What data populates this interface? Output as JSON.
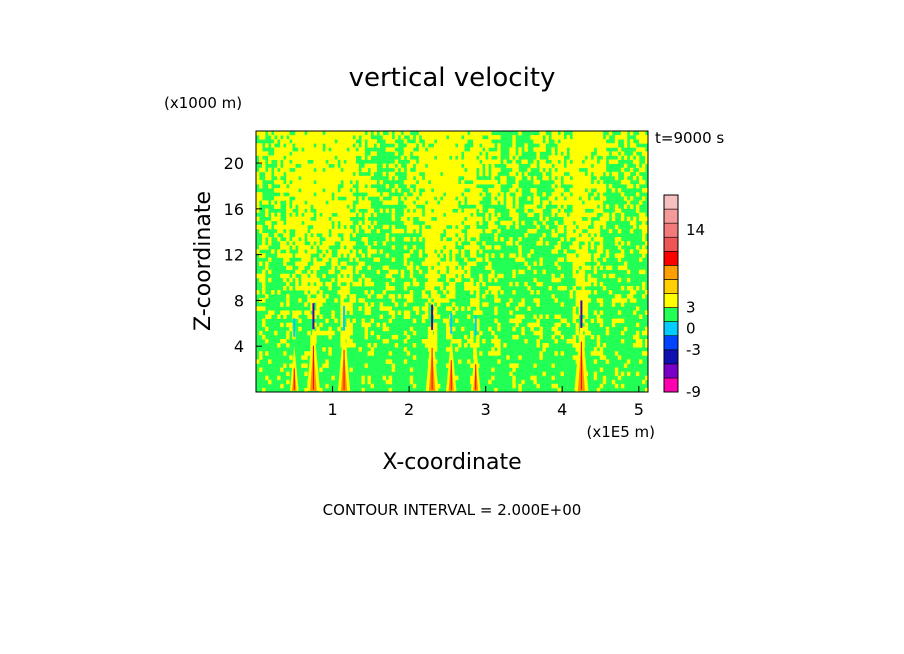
{
  "chart_data": {
    "type": "heatmap",
    "title": "vertical velocity",
    "time_label": "t=9000 s",
    "xlabel": "X-coordinate",
    "ylabel": "Z-coordinate",
    "x_unit": "(x1E5 m)",
    "y_unit": "(x1000 m)",
    "xlim": [
      0,
      5.12
    ],
    "ylim": [
      0,
      22.8
    ],
    "x_ticks": [
      1,
      2,
      3,
      4,
      5
    ],
    "y_ticks": [
      4,
      8,
      12,
      16,
      20
    ],
    "footer": "CONTOUR INTERVAL = 2.000E+00",
    "colorbar": {
      "levels": [
        -9,
        -7,
        -5,
        -3,
        -1,
        1,
        3,
        5,
        7,
        9,
        11,
        13,
        15,
        17
      ],
      "tick_labels": [
        {
          "label": "-9",
          "value": -9
        },
        {
          "label": "-3",
          "value": -3
        },
        {
          "label": "0",
          "value": 0
        },
        {
          "label": "3",
          "value": 3
        },
        {
          "label": "14",
          "value": 14
        }
      ],
      "colors": [
        "#ff00b0",
        "#7a00c8",
        "#1010b0",
        "#0044ff",
        "#00ccff",
        "#22ff55",
        "#ffff00",
        "#ffd000",
        "#ffa000",
        "#ff0000",
        "#ee5555",
        "#f27a7a",
        "#f59a9a",
        "#f7c0c0"
      ]
    },
    "field_colors": {
      "background": "#22ff55",
      "positive": "#ffff00",
      "warm": "#ff9000",
      "hot": "#ff0000",
      "negative": "#00ccff",
      "strong_negative": "#5000aa"
    },
    "updraft_x": [
      0.5,
      0.75,
      1.15,
      2.3,
      2.55,
      2.87,
      4.25
    ],
    "updraft_strength": [
      0.35,
      0.9,
      0.8,
      0.85,
      0.55,
      0.45,
      1.0
    ]
  }
}
